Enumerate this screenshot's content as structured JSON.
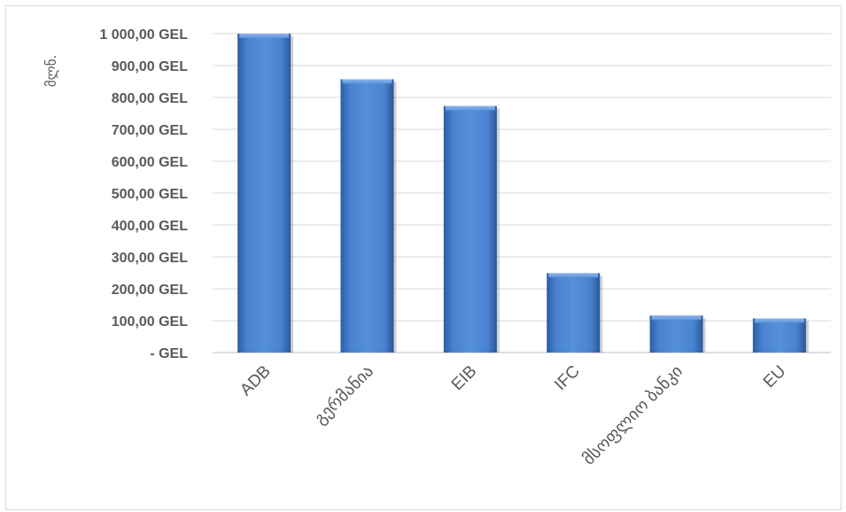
{
  "chart_data": {
    "type": "bar",
    "ylabel": "მლნ.",
    "categories": [
      "ADB",
      "გერმანია",
      "EIB",
      "IFC",
      "მსოფლიო ბანკი",
      "EU"
    ],
    "values": [
      1000,
      857,
      773,
      249,
      116,
      107
    ],
    "ylim": [
      0,
      1000
    ],
    "ytick_labels": [
      "-   GEL",
      "100,00 GEL",
      "200,00 GEL",
      "300,00 GEL",
      "400,00 GEL",
      "500,00 GEL",
      "600,00 GEL",
      "700,00 GEL",
      "800,00 GEL",
      "900,00 GEL",
      "1 000,00 GEL"
    ],
    "grid": true,
    "legend": "none",
    "bar_color": "#4a7ec6"
  }
}
